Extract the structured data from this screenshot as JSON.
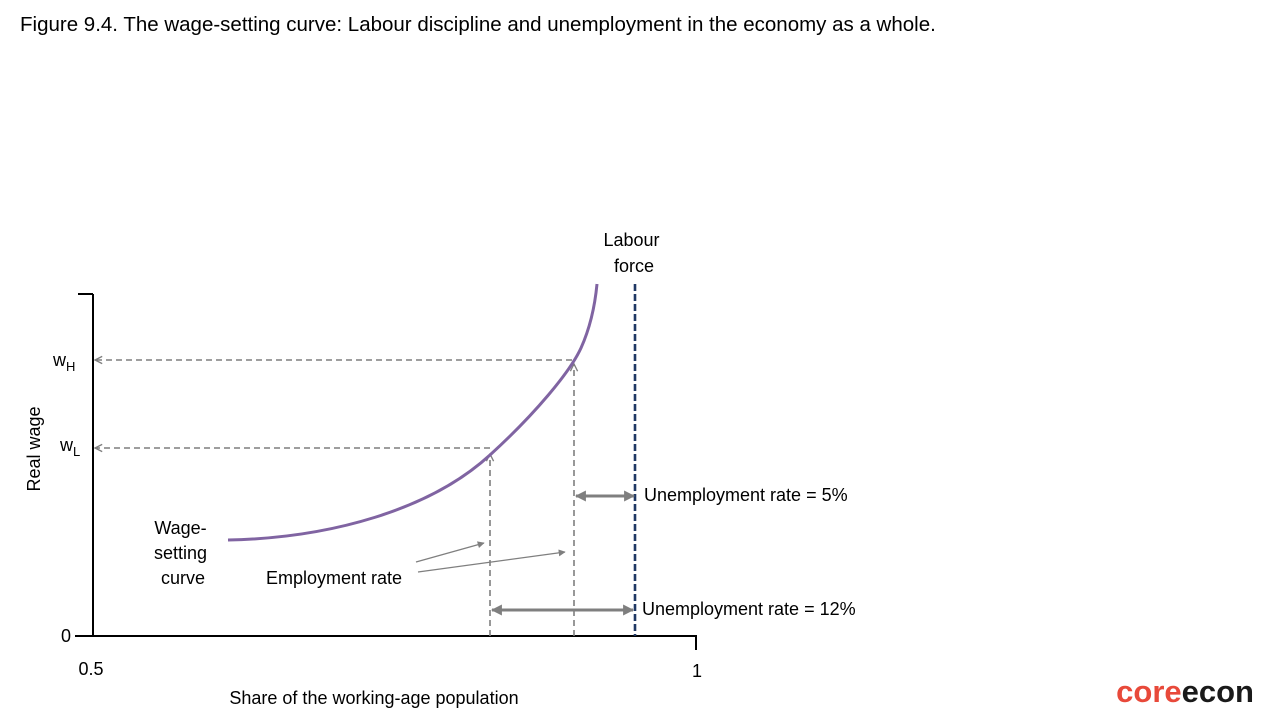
{
  "figure": {
    "title": "Figure 9.4. The wage-setting curve: Labour discipline and unemployment in the economy as a whole."
  },
  "axes": {
    "y_label": "Real wage",
    "x_label": "Share of the working-age population",
    "origin_label": "0",
    "x_min_label": "0.5",
    "x_max_label": "1"
  },
  "y_ticks": {
    "high": {
      "base": "w",
      "sub": "H"
    },
    "low": {
      "base": "w",
      "sub": "L"
    }
  },
  "annotations": {
    "labour_force": [
      "Labour",
      "force"
    ],
    "wage_setting_curve": [
      "Wage-",
      "setting",
      "curve"
    ],
    "employment_rate": "Employment rate",
    "unemployment_5": "Unemployment rate = 5%",
    "unemployment_12": "Unemployment rate = 12%"
  },
  "logo": {
    "part1": "core",
    "part2": "econ",
    "color1": "#e8493a",
    "color2": "#1a1a1a"
  },
  "colors": {
    "curve": "#8064a2",
    "labour_force_line": "#1f3864",
    "guide_lines": "#7f7f7f",
    "arrows": "#7f7f7f"
  }
}
